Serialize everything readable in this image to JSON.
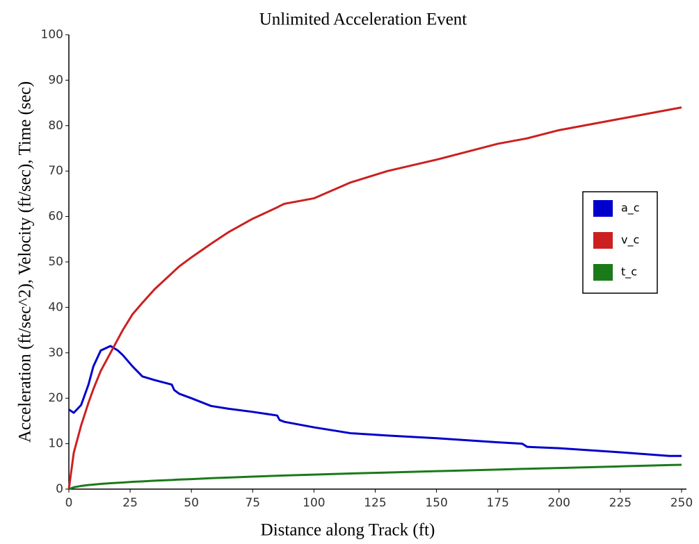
{
  "chart_data": {
    "type": "line",
    "title": "Unlimited Acceleration Event",
    "xlabel": "Distance along Track (ft)",
    "ylabel": "Acceleration (ft/sec^2), Velocity (ft/sec), Time (sec)",
    "x": [
      0,
      2,
      5,
      8,
      10,
      13,
      17,
      20,
      22,
      26,
      30,
      35,
      42,
      43,
      45,
      50,
      58,
      65,
      75,
      85,
      86,
      88,
      100,
      115,
      130,
      150,
      175,
      185,
      187,
      200,
      225,
      245,
      250
    ],
    "series": [
      {
        "name": "a_c",
        "color": "#0000cc",
        "values": [
          17.5,
          16.8,
          18.5,
          23,
          27,
          30.5,
          31.5,
          30.5,
          29.5,
          27,
          24.8,
          24,
          23,
          21.8,
          21,
          20,
          18.3,
          17.7,
          17,
          16.2,
          15.2,
          14.8,
          13.6,
          12.3,
          11.8,
          11.2,
          10.3,
          10,
          9.3,
          9,
          8.1,
          7.3,
          7.3
        ]
      },
      {
        "name": "v_c",
        "color": "#cc2020",
        "values": [
          0,
          8,
          14,
          19,
          22,
          26,
          30,
          33,
          35,
          38.5,
          41,
          44,
          47.5,
          48,
          49,
          51,
          54,
          56.5,
          59.5,
          62,
          62.3,
          62.8,
          64,
          67.5,
          70,
          72.5,
          76,
          77,
          77.2,
          79,
          81.5,
          83.5,
          84
        ]
      },
      {
        "name": "t_c",
        "color": "#1a7a1a",
        "values": [
          0,
          0.4,
          0.7,
          0.9,
          1,
          1.15,
          1.3,
          1.4,
          1.45,
          1.6,
          1.7,
          1.85,
          2,
          2.05,
          2.1,
          2.2,
          2.4,
          2.55,
          2.75,
          2.95,
          2.97,
          3,
          3.2,
          3.45,
          3.65,
          3.95,
          4.3,
          4.45,
          4.47,
          4.65,
          5,
          5.3,
          5.35
        ]
      }
    ],
    "xlim": [
      0,
      252
    ],
    "xticks": [
      0,
      25,
      50,
      75,
      100,
      125,
      150,
      175,
      200,
      225,
      250
    ],
    "ylim": [
      0,
      100
    ],
    "yticks": [
      0,
      10,
      20,
      30,
      40,
      50,
      60,
      70,
      80,
      90,
      100
    ],
    "legend": "right"
  }
}
